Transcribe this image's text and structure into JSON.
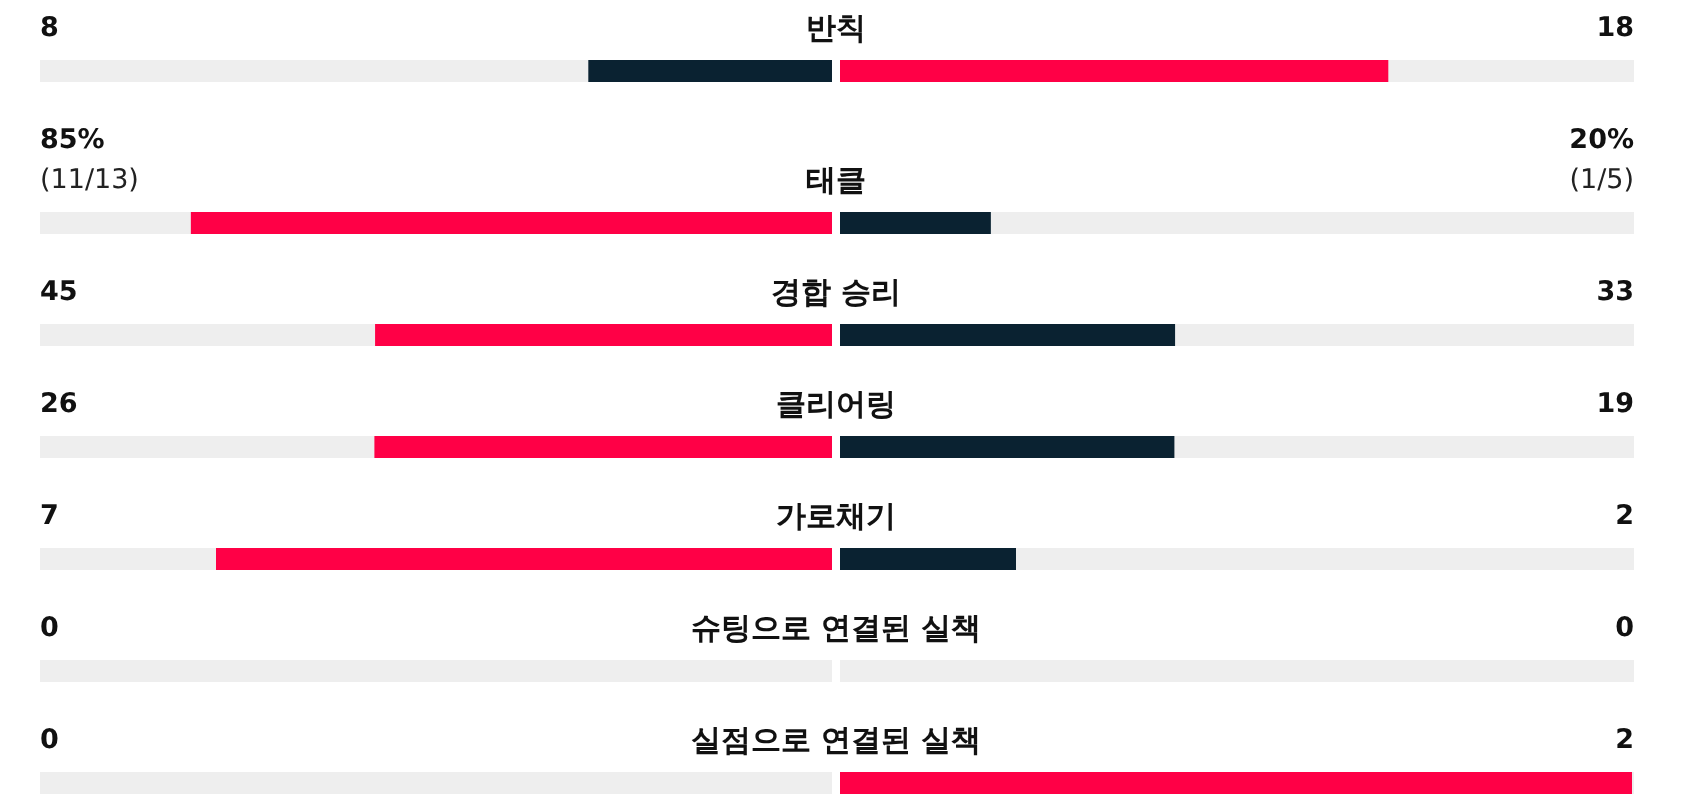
{
  "chart_data": {
    "type": "other",
    "data_labels": true,
    "categories": [
      "반칙",
      "태클",
      "경합 승리",
      "클리어링",
      "가로채기",
      "슈팅으로 연결된 실책",
      "실점으로 연결된 실책"
    ],
    "series": [
      {
        "values": [
          8,
          85,
          45,
          26,
          7,
          0,
          0
        ],
        "value_labels": [
          "8",
          "85% (11/13)",
          "45",
          "26",
          "7",
          "0",
          "0"
        ],
        "colors": [
          "#0a2231",
          "#ff0046",
          "#ff0046",
          "#ff0046",
          "#ff0046",
          "#0a2231",
          "#0a2231"
        ]
      },
      {
        "values": [
          18,
          20,
          33,
          19,
          2,
          0,
          2
        ],
        "value_labels": [
          "18",
          "20% (1/5)",
          "33",
          "19",
          "2",
          "0",
          "2"
        ],
        "colors": [
          "#ff0046",
          "#0a2231",
          "#0a2231",
          "#0a2231",
          "#0a2231",
          "#0a2231",
          "#ff0046"
        ]
      }
    ]
  }
}
